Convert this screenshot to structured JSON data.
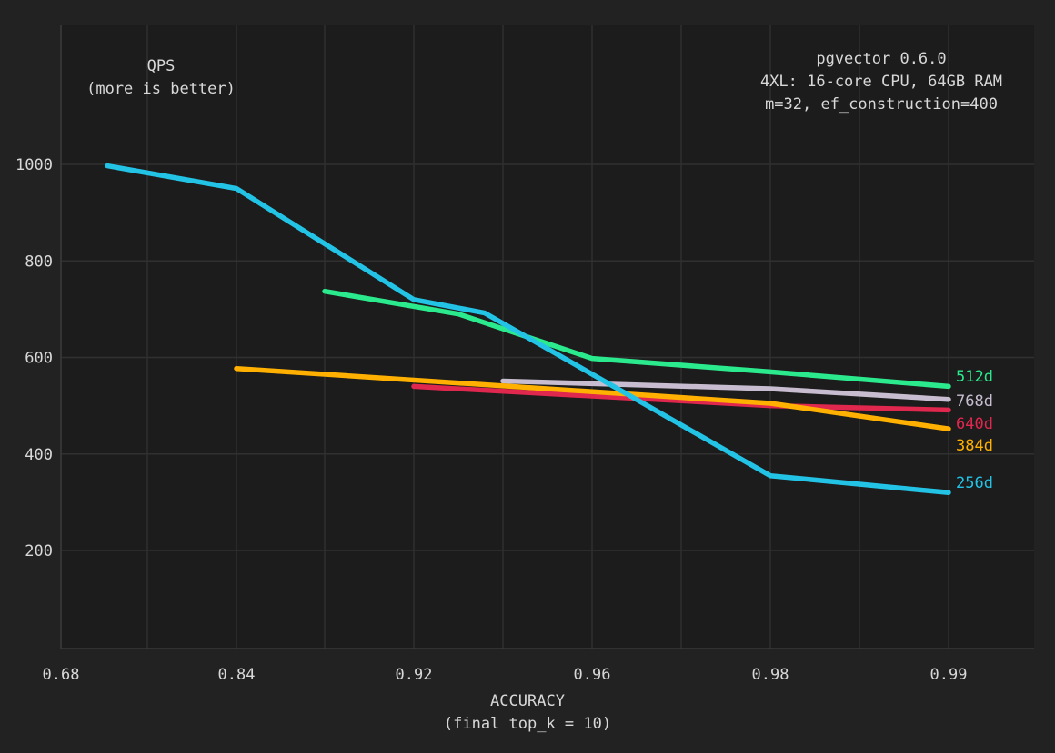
{
  "chart_data": {
    "type": "line",
    "annotations": {
      "metric_title": "QPS",
      "metric_subtitle": "(more is better)",
      "info_lines": [
        "pgvector 0.6.0",
        "4XL: 16-core CPU, 64GB RAM",
        "m=32, ef_construction=400"
      ]
    },
    "xlabel": "ACCURACY",
    "xlabel_sub": "(final top_k = 10)",
    "ylabel": "",
    "x_ticks": [
      "0.68",
      "0.84",
      "0.92",
      "0.96",
      "0.98",
      "0.99"
    ],
    "y_ticks": [
      200,
      400,
      600,
      800,
      1000
    ],
    "ylim": [
      0,
      1260
    ],
    "grid": true,
    "legend": "inline labels at right end of each line",
    "series": [
      {
        "name": "512d",
        "color": "#2bea8d",
        "points": [
          [
            3.0,
            737
          ],
          [
            4.5,
            690
          ],
          [
            5.0,
            598
          ],
          [
            6.0,
            570
          ],
          [
            7.0,
            540
          ]
        ]
      },
      {
        "name": "768d",
        "color": "#c8bdd0",
        "points": [
          [
            4.9,
            551
          ],
          [
            6.0,
            535
          ],
          [
            7.0,
            513
          ]
        ]
      },
      {
        "name": "640d",
        "color": "#e0274d",
        "points": [
          [
            4.0,
            540
          ],
          [
            6.0,
            500
          ],
          [
            7.0,
            491
          ]
        ]
      },
      {
        "name": "384d",
        "color": "#ffb000",
        "points": [
          [
            2.0,
            577
          ],
          [
            6.0,
            505
          ],
          [
            7.0,
            452
          ]
        ]
      },
      {
        "name": "256d",
        "color": "#23c3e6",
        "points": [
          [
            0.5,
            997
          ],
          [
            2.0,
            950
          ],
          [
            4.0,
            720
          ],
          [
            4.8,
            692
          ],
          [
            6.0,
            355
          ],
          [
            7.0,
            320
          ]
        ]
      }
    ]
  }
}
